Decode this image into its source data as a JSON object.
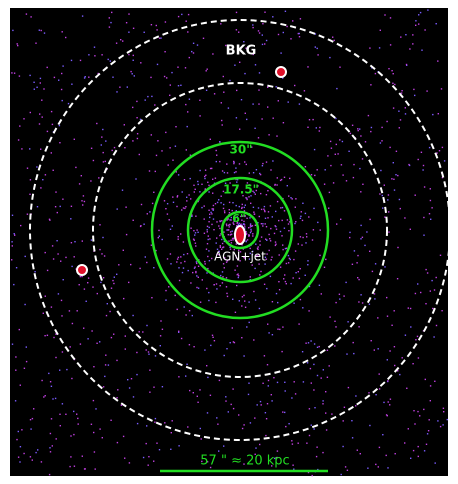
{
  "labels": {
    "background": "BKG",
    "outer_ring": "30\"",
    "middle_ring": "17.5\"",
    "inner_ring": "6\"",
    "core": "AGN+jet",
    "scale_bar": "57 \" ≈ 20 kpc"
  }
}
